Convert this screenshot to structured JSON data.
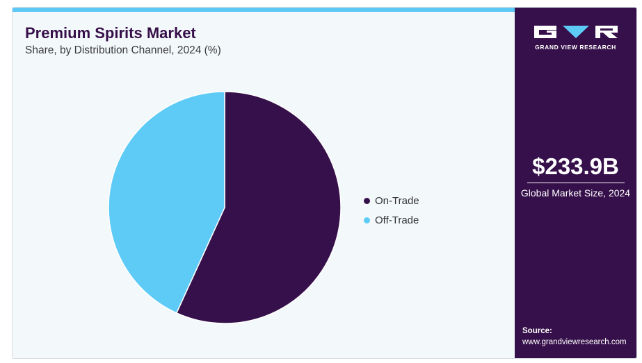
{
  "header": {
    "title": "Premium Spirits Market",
    "subtitle": "Share, by Distribution Channel, 2024 (%)"
  },
  "chart_data": {
    "type": "pie",
    "title": "Premium Spirits Market",
    "subtitle": "Share, by Distribution Channel, 2024 (%)",
    "categories": [
      "On-Trade",
      "Off-Trade"
    ],
    "values": [
      56.8,
      43.2
    ],
    "colors": [
      "#36104a",
      "#5ecbf7"
    ],
    "legend": "right"
  },
  "side_panel": {
    "logo_text": "GRAND VIEW RESEARCH",
    "market_size": "$233.9B",
    "market_size_label": "Global Market Size, 2024",
    "source_label": "Source:",
    "source_url": "www.grandviewresearch.com"
  },
  "colors": {
    "accent": "#5bc8f5",
    "brand_dark": "#36104a",
    "background": "#f3f8fb"
  }
}
